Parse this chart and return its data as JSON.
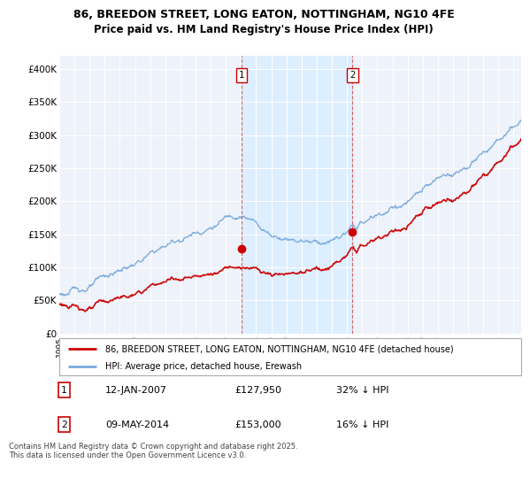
{
  "title_line1": "86, BREEDON STREET, LONG EATON, NOTTINGHAM, NG10 4FE",
  "title_line2": "Price paid vs. HM Land Registry's House Price Index (HPI)",
  "xlim_start": 1995.0,
  "xlim_end": 2025.5,
  "ylim_min": 0,
  "ylim_max": 420000,
  "yticks": [
    0,
    50000,
    100000,
    150000,
    200000,
    250000,
    300000,
    350000,
    400000
  ],
  "ytick_labels": [
    "£0",
    "£50K",
    "£100K",
    "£150K",
    "£200K",
    "£250K",
    "£300K",
    "£350K",
    "£400K"
  ],
  "xticks": [
    1995,
    1996,
    1997,
    1998,
    1999,
    2000,
    2001,
    2002,
    2003,
    2004,
    2005,
    2006,
    2007,
    2008,
    2009,
    2010,
    2011,
    2012,
    2013,
    2014,
    2015,
    2016,
    2017,
    2018,
    2019,
    2020,
    2021,
    2022,
    2023,
    2024,
    2025
  ],
  "sale1_x": 2007.04,
  "sale1_y": 127950,
  "sale2_x": 2014.36,
  "sale2_y": 153000,
  "sale1_date": "12-JAN-2007",
  "sale1_price": "£127,950",
  "sale1_hpi": "32% ↓ HPI",
  "sale2_date": "09-MAY-2014",
  "sale2_price": "£153,000",
  "sale2_hpi": "16% ↓ HPI",
  "property_color": "#cc0000",
  "hpi_color": "#7aaadd",
  "shade_color": "#ddeeff",
  "vline_color": "#cc4444",
  "background_color": "#eef2fa",
  "grid_color": "#ffffff",
  "legend_label1": "86, BREEDON STREET, LONG EATON, NOTTINGHAM, NG10 4FE (detached house)",
  "legend_label2": "HPI: Average price, detached house, Erewash",
  "footer": "Contains HM Land Registry data © Crown copyright and database right 2025.\nThis data is licensed under the Open Government Licence v3.0."
}
